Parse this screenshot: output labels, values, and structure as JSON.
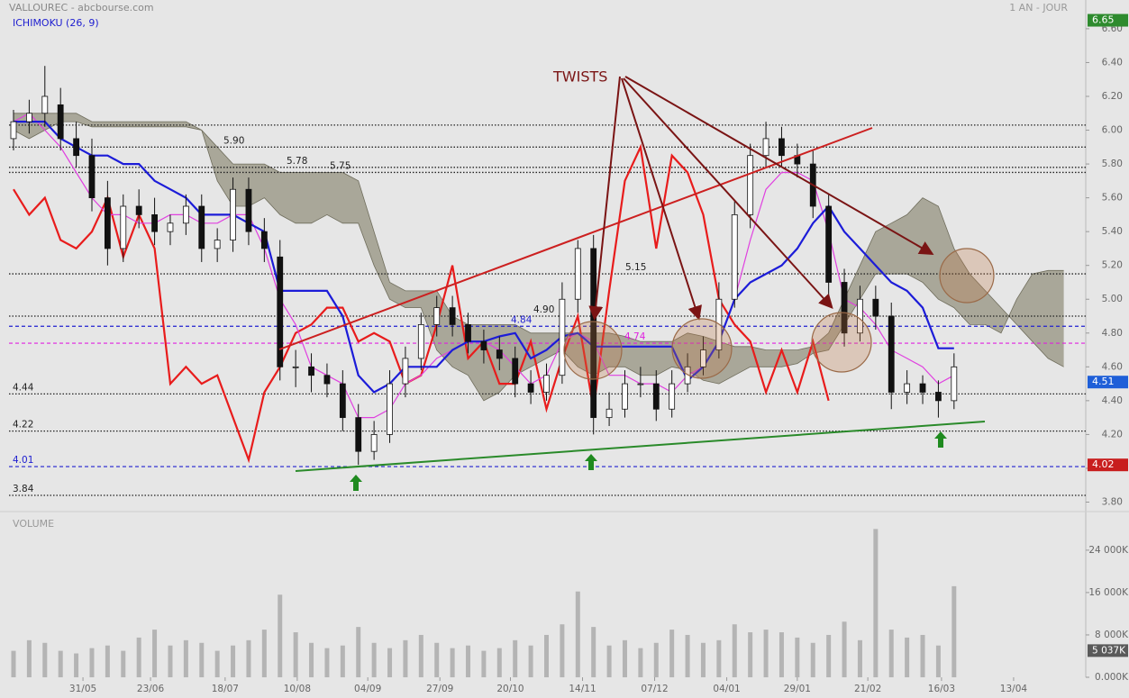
{
  "chart_data": {
    "type": "candlestick",
    "title": "VALLOUREC - abcbourse.com",
    "subtitle": "1 AN - JOUR",
    "indicator": "ICHIMOKU (26, 9)",
    "annotation": "TWISTS",
    "xlim": [
      0,
      68
    ],
    "xticks": [
      {
        "value": 4.43,
        "label": "31/05"
      },
      {
        "value": 8.74,
        "label": "23/06"
      },
      {
        "value": 13.5,
        "label": "18/07"
      },
      {
        "value": 18.1,
        "label": "10/08"
      },
      {
        "value": 22.6,
        "label": "04/09"
      },
      {
        "value": 27.2,
        "label": "27/09"
      },
      {
        "value": 31.7,
        "label": "20/10"
      },
      {
        "value": 36.3,
        "label": "14/11"
      },
      {
        "value": 40.9,
        "label": "07/12"
      },
      {
        "value": 45.5,
        "label": "04/01"
      },
      {
        "value": 50,
        "label": "29/01"
      },
      {
        "value": 54.5,
        "label": "21/02"
      },
      {
        "value": 59.2,
        "label": "16/03"
      },
      {
        "value": 63.8,
        "label": "13/04"
      }
    ],
    "ylim": [
      3.76,
      6.77
    ],
    "yticks": [
      {
        "value": 3.8,
        "label": "3.80"
      },
      {
        "value": 4.0,
        "label": "4.00"
      },
      {
        "value": 4.2,
        "label": "4.20"
      },
      {
        "value": 4.4,
        "label": "4.40"
      },
      {
        "value": 4.6,
        "label": "4.60"
      },
      {
        "value": 4.8,
        "label": "4.80"
      },
      {
        "value": 5.0,
        "label": "5.00"
      },
      {
        "value": 5.2,
        "label": "5.20"
      },
      {
        "value": 5.4,
        "label": "5.40"
      },
      {
        "value": 5.6,
        "label": "5.60"
      },
      {
        "value": 5.8,
        "label": "5.80"
      },
      {
        "value": 6.0,
        "label": "6.00"
      },
      {
        "value": 6.2,
        "label": "6.20"
      },
      {
        "value": 6.4,
        "label": "6.40"
      },
      {
        "value": 6.6,
        "label": "6.60"
      }
    ],
    "open": [
      5.95,
      6.05,
      6.1,
      6.15,
      5.95,
      5.85,
      5.6,
      5.3,
      5.55,
      5.5,
      5.4,
      5.45,
      5.55,
      5.3,
      5.35,
      5.65,
      5.4,
      5.25,
      4.6,
      4.6,
      4.55,
      4.5,
      4.3,
      4.1,
      4.2,
      4.5,
      4.65,
      4.85,
      4.95,
      4.85,
      4.75,
      4.7,
      4.65,
      4.5,
      4.45,
      4.55,
      5.0,
      5.3,
      4.3,
      4.35,
      4.5,
      4.5,
      4.35,
      4.5,
      4.6,
      4.7,
      5.0,
      5.5,
      5.85,
      5.95,
      5.85,
      5.8,
      5.55,
      5.1,
      4.8,
      5.0,
      4.9,
      4.45,
      4.5,
      4.45,
      4.4
    ],
    "high": [
      6.12,
      6.18,
      6.38,
      6.25,
      6.05,
      5.95,
      5.7,
      5.62,
      5.65,
      5.6,
      5.5,
      5.62,
      5.62,
      5.42,
      5.72,
      5.72,
      5.48,
      5.35,
      4.7,
      4.68,
      4.62,
      4.58,
      4.38,
      4.28,
      4.58,
      4.72,
      4.92,
      5.02,
      5.02,
      4.92,
      4.82,
      4.78,
      4.72,
      4.58,
      4.62,
      5.1,
      5.35,
      5.38,
      4.45,
      4.58,
      4.6,
      4.58,
      4.58,
      4.68,
      4.78,
      5.1,
      5.58,
      5.92,
      6.05,
      6.02,
      5.92,
      5.88,
      5.62,
      5.18,
      5.08,
      5.08,
      4.98,
      4.58,
      4.55,
      4.52,
      4.68
    ],
    "low": [
      5.88,
      5.98,
      6.02,
      5.88,
      5.78,
      5.52,
      5.2,
      5.22,
      5.42,
      5.32,
      5.32,
      5.38,
      5.22,
      5.22,
      5.28,
      5.32,
      5.22,
      4.52,
      4.48,
      4.45,
      4.42,
      4.22,
      4.02,
      4.05,
      4.15,
      4.42,
      4.58,
      4.78,
      4.78,
      4.68,
      4.62,
      4.58,
      4.42,
      4.38,
      4.4,
      4.5,
      4.92,
      4.2,
      4.25,
      4.3,
      4.42,
      4.28,
      4.3,
      4.45,
      4.55,
      4.65,
      4.95,
      5.42,
      5.78,
      5.78,
      5.72,
      5.48,
      5.02,
      4.72,
      4.75,
      4.82,
      4.35,
      4.38,
      4.38,
      4.3,
      4.35
    ],
    "close": [
      6.05,
      6.1,
      6.2,
      5.95,
      5.85,
      5.6,
      5.3,
      5.55,
      5.5,
      5.4,
      5.45,
      5.55,
      5.3,
      5.35,
      5.65,
      5.4,
      5.3,
      4.6,
      4.6,
      4.55,
      4.5,
      4.3,
      4.1,
      4.2,
      4.5,
      4.65,
      4.85,
      4.95,
      4.85,
      4.75,
      4.7,
      4.65,
      4.5,
      4.45,
      4.55,
      5.0,
      5.3,
      4.3,
      4.35,
      4.5,
      4.5,
      4.35,
      4.5,
      4.6,
      4.7,
      5.0,
      5.5,
      5.85,
      5.95,
      5.85,
      5.8,
      5.55,
      5.1,
      4.8,
      5.0,
      4.9,
      4.45,
      4.5,
      4.45,
      4.4,
      4.6
    ],
    "cloud": {
      "color": "#8e8c78",
      "span_a": [
        6.1,
        6.1,
        6.1,
        6.1,
        6.1,
        6.05,
        6.05,
        6.05,
        6.05,
        6.05,
        6.05,
        6.05,
        6.0,
        5.9,
        5.8,
        5.8,
        5.8,
        5.75,
        5.75,
        5.75,
        5.75,
        5.75,
        5.7,
        5.4,
        5.1,
        5.05,
        5.05,
        5.05,
        4.9,
        4.85,
        4.85,
        4.85,
        4.85,
        4.8,
        4.8,
        4.8,
        4.8,
        4.8,
        4.8,
        4.78,
        4.75,
        4.75,
        4.75,
        4.8,
        4.78,
        4.75,
        4.72,
        4.72,
        4.7,
        4.7,
        4.7,
        4.72,
        4.8,
        5.0,
        5.2,
        5.4,
        5.45,
        5.5,
        5.6,
        5.55,
        5.3,
        5.15,
        5.05,
        4.95,
        4.85,
        4.75,
        4.65,
        4.6
      ],
      "span_b": [
        6.0,
        5.95,
        6.0,
        6.05,
        6.05,
        6.02,
        6.02,
        6.02,
        6.02,
        6.02,
        6.02,
        6.02,
        6.0,
        5.7,
        5.55,
        5.55,
        5.6,
        5.5,
        5.45,
        5.45,
        5.5,
        5.45,
        5.45,
        5.2,
        5.0,
        4.95,
        4.95,
        4.7,
        4.6,
        4.55,
        4.4,
        4.45,
        4.55,
        4.6,
        4.65,
        4.7,
        4.6,
        4.55,
        4.6,
        4.6,
        4.55,
        4.55,
        4.6,
        4.58,
        4.52,
        4.5,
        4.55,
        4.6,
        4.6,
        4.6,
        4.62,
        4.68,
        4.7,
        4.85,
        5.0,
        5.15,
        5.15,
        5.15,
        5.1,
        5.0,
        4.95,
        4.85,
        4.85,
        4.8,
        5.0,
        5.15,
        5.17,
        5.17
      ]
    },
    "series": [
      {
        "color": "#e81c1c",
        "values": [
          5.65,
          5.5,
          5.6,
          5.35,
          5.3,
          5.4,
          5.6,
          5.25,
          5.5,
          5.3,
          4.5,
          4.6,
          4.5,
          4.55,
          4.3,
          4.05,
          4.45,
          4.6,
          4.8,
          4.85,
          4.95,
          4.95,
          4.75,
          4.8,
          4.75,
          4.5,
          4.55,
          4.85,
          5.2,
          4.65,
          4.75,
          4.5,
          4.5,
          4.75,
          4.35,
          4.65,
          4.9,
          4.35,
          5.05,
          5.7,
          5.9,
          5.3,
          5.85,
          5.75,
          5.5,
          5.0,
          4.85,
          4.75,
          4.45,
          4.7,
          4.45,
          4.75,
          4.4,
          null,
          null,
          null,
          null,
          null,
          null,
          null,
          null
        ]
      },
      {
        "color": "#e040e0",
        "values": [
          6.05,
          6.1,
          6.0,
          5.9,
          5.75,
          5.6,
          5.5,
          5.5,
          5.45,
          5.45,
          5.5,
          5.5,
          5.45,
          5.45,
          5.5,
          5.5,
          5.3,
          5.0,
          4.85,
          4.6,
          4.55,
          4.5,
          4.3,
          4.3,
          4.35,
          4.5,
          4.55,
          4.65,
          4.7,
          4.75,
          4.75,
          4.7,
          4.6,
          4.5,
          4.55,
          4.75,
          4.8,
          4.75,
          4.55,
          4.55,
          4.5,
          4.5,
          4.45,
          4.55,
          4.6,
          4.75,
          5.0,
          5.35,
          5.65,
          5.75,
          5.75,
          5.7,
          5.4,
          5.0,
          4.95,
          4.85,
          4.7,
          4.65,
          4.6,
          4.5,
          4.55
        ]
      },
      {
        "color": "#1c1cd8",
        "values": [
          6.05,
          6.05,
          6.05,
          5.95,
          5.9,
          5.85,
          5.85,
          5.8,
          5.8,
          5.7,
          5.65,
          5.6,
          5.5,
          5.5,
          5.5,
          5.45,
          5.4,
          5.05,
          5.05,
          5.05,
          5.05,
          4.9,
          4.55,
          4.45,
          4.5,
          4.6,
          4.6,
          4.6,
          4.7,
          4.75,
          4.75,
          4.78,
          4.8,
          4.65,
          4.7,
          4.78,
          4.8,
          4.72,
          4.72,
          4.72,
          4.72,
          4.72,
          4.72,
          4.52,
          4.6,
          4.75,
          5.0,
          5.1,
          5.15,
          5.2,
          5.3,
          5.45,
          5.55,
          5.4,
          5.3,
          5.2,
          5.1,
          5.05,
          4.95,
          4.71,
          4.71
        ]
      }
    ],
    "levels": [
      {
        "value": 6.03,
        "color": "#222222"
      },
      {
        "value": 5.9,
        "label": "5.90",
        "color": "#222222"
      },
      {
        "value": 5.78,
        "label": "5.78",
        "color": "#222222"
      },
      {
        "value": 5.75,
        "label": "5.75",
        "color": "#222222"
      },
      {
        "value": 5.15,
        "label": "5.15",
        "color": "#222222"
      },
      {
        "value": 4.9,
        "label": "4.90",
        "color": "#222222"
      },
      {
        "value": 4.84,
        "label": "4.84",
        "color": "#2020d0"
      },
      {
        "value": 4.74,
        "label": "4.74",
        "color": "#e020e0"
      },
      {
        "value": 4.44,
        "label": "4.44",
        "color": "#222222"
      },
      {
        "value": 4.22,
        "label": "4.22",
        "color": "#222222"
      },
      {
        "value": 4.01,
        "label": "4.01",
        "color": "#2020d0"
      },
      {
        "value": 3.84,
        "label": "3.84",
        "color": "#222222"
      }
    ],
    "price_tags": [
      {
        "value": 6.65,
        "color": "#2e8b2e"
      },
      {
        "value": 4.51,
        "color": "#1e5fd8"
      },
      {
        "value": 4.02,
        "color": "#c81e1e"
      }
    ],
    "volume": {
      "title": "VOLUME",
      "color": "#b4b4b4",
      "ylim": [
        0,
        30100
      ],
      "yticks": [
        {
          "value": 0,
          "label": "0.000K"
        },
        {
          "value": 8000,
          "label": "8 000K"
        },
        {
          "value": 16000,
          "label": "16 000K"
        },
        {
          "value": 24000,
          "label": "24 000K"
        }
      ],
      "tag": {
        "value": 5037,
        "label": "5 037K"
      },
      "values": [
        5000,
        7000,
        6500,
        5000,
        4500,
        5500,
        6000,
        5000,
        7500,
        9000,
        6000,
        7000,
        6500,
        5000,
        6000,
        7000,
        9000,
        15600,
        8500,
        6500,
        5500,
        6000,
        9500,
        6500,
        5500,
        7000,
        8000,
        6500,
        5500,
        6000,
        5000,
        5500,
        7000,
        6000,
        8000,
        10000,
        16200,
        9500,
        6000,
        7000,
        5500,
        6500,
        9000,
        8000,
        6500,
        7000,
        10000,
        8500,
        9000,
        8500,
        7500,
        6500,
        8000,
        10500,
        7000,
        28000,
        9000,
        7500,
        8000,
        6000,
        17200
      ]
    }
  }
}
